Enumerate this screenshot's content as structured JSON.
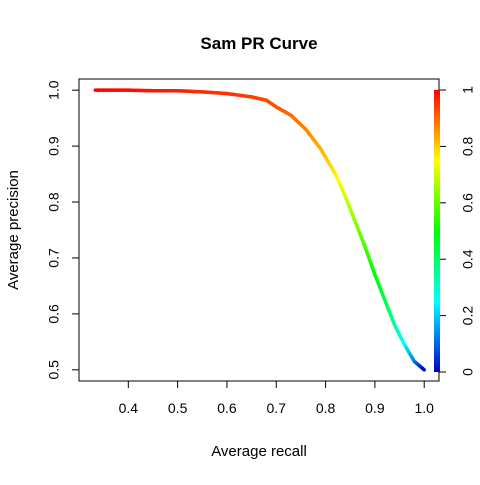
{
  "chart_data": {
    "type": "line",
    "title": "Sam PR Curve",
    "xlabel": "Average recall",
    "ylabel": "Average precision",
    "xlim": [
      0.3,
      1.03
    ],
    "ylim": [
      0.48,
      1.02
    ],
    "x_ticks": [
      "0.4",
      "0.5",
      "0.6",
      "0.7",
      "0.8",
      "0.9",
      "1.0"
    ],
    "y_ticks": [
      "0.5",
      "0.6",
      "0.7",
      "0.8",
      "0.9",
      "1.0"
    ],
    "right_axis_ticks": [
      "0",
      "0.2",
      "0.4",
      "0.6",
      "0.8",
      "1"
    ],
    "colorbar": {
      "type": "rainbow",
      "range": [
        0,
        1
      ],
      "colors": [
        "#0000cc",
        "#00ffff",
        "#00ff00",
        "#ffff00",
        "#ff0000"
      ]
    },
    "grid": false,
    "series": [
      {
        "color_by": "threshold",
        "points": [
          {
            "x": 0.333,
            "y": 1.0,
            "t": 1.0
          },
          {
            "x": 0.4,
            "y": 1.0,
            "t": 0.99
          },
          {
            "x": 0.45,
            "y": 0.999,
            "t": 0.98
          },
          {
            "x": 0.5,
            "y": 0.999,
            "t": 0.97
          },
          {
            "x": 0.55,
            "y": 0.997,
            "t": 0.96
          },
          {
            "x": 0.6,
            "y": 0.994,
            "t": 0.95
          },
          {
            "x": 0.65,
            "y": 0.988,
            "t": 0.94
          },
          {
            "x": 0.68,
            "y": 0.982,
            "t": 0.93
          },
          {
            "x": 0.7,
            "y": 0.97,
            "t": 0.92
          },
          {
            "x": 0.73,
            "y": 0.955,
            "t": 0.9
          },
          {
            "x": 0.76,
            "y": 0.93,
            "t": 0.87
          },
          {
            "x": 0.79,
            "y": 0.895,
            "t": 0.83
          },
          {
            "x": 0.82,
            "y": 0.85,
            "t": 0.77
          },
          {
            "x": 0.84,
            "y": 0.81,
            "t": 0.71
          },
          {
            "x": 0.86,
            "y": 0.765,
            "t": 0.64
          },
          {
            "x": 0.88,
            "y": 0.72,
            "t": 0.57
          },
          {
            "x": 0.9,
            "y": 0.67,
            "t": 0.5
          },
          {
            "x": 0.92,
            "y": 0.625,
            "t": 0.43
          },
          {
            "x": 0.94,
            "y": 0.58,
            "t": 0.35
          },
          {
            "x": 0.96,
            "y": 0.545,
            "t": 0.25
          },
          {
            "x": 0.98,
            "y": 0.515,
            "t": 0.13
          },
          {
            "x": 1.0,
            "y": 0.5,
            "t": 0.0
          }
        ]
      }
    ]
  }
}
